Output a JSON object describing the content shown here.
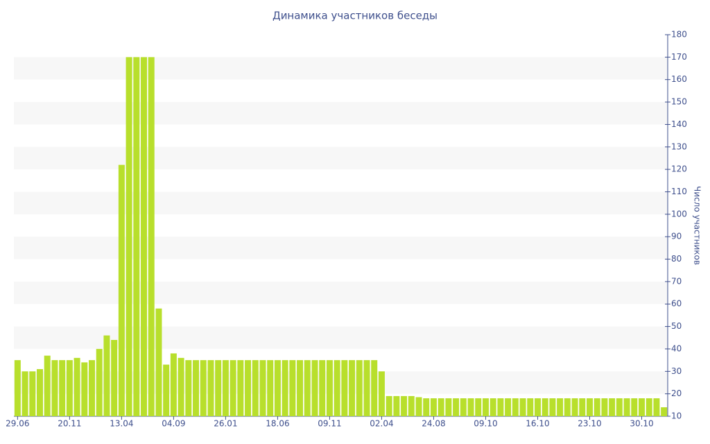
{
  "chart_data": {
    "type": "bar",
    "title": "Динамика участников беседы",
    "y_label": "Число участников",
    "categories": [
      "29.06",
      null,
      null,
      null,
      null,
      null,
      null,
      "20.11",
      null,
      null,
      null,
      null,
      null,
      null,
      "13.04",
      null,
      null,
      null,
      null,
      null,
      null,
      "04.09",
      null,
      null,
      null,
      null,
      null,
      null,
      "26.01",
      null,
      null,
      null,
      null,
      null,
      null,
      "18.06",
      null,
      null,
      null,
      null,
      null,
      null,
      "09.11",
      null,
      null,
      null,
      null,
      null,
      null,
      "02.04",
      null,
      null,
      null,
      null,
      null,
      null,
      "24.08",
      null,
      null,
      null,
      null,
      null,
      null,
      "09.10",
      null,
      null,
      null,
      null,
      null,
      null,
      "16.10",
      null,
      null,
      null,
      null,
      null,
      null,
      "23.10",
      null,
      null,
      null,
      null,
      null,
      null,
      "30.10",
      null,
      null,
      null
    ],
    "values": [
      35,
      30,
      30,
      31,
      37,
      35,
      35,
      35,
      36,
      34,
      35,
      40,
      46,
      44,
      122,
      170,
      170,
      170,
      170,
      58,
      33,
      38,
      36,
      35,
      35,
      35,
      35,
      35,
      35,
      35,
      35,
      35,
      35,
      35,
      35,
      35,
      35,
      35,
      35,
      35,
      35,
      35,
      35,
      35,
      35,
      35,
      35,
      35,
      35,
      30,
      19,
      19,
      19,
      19,
      18.5,
      18,
      18,
      18,
      18,
      18,
      18,
      18,
      18,
      18,
      18,
      18,
      18,
      18,
      18,
      18,
      18,
      18,
      18,
      18,
      18,
      18,
      18,
      18,
      18,
      18,
      18,
      18,
      18,
      18,
      18,
      18,
      18,
      14
    ],
    "color": "#b8df2c",
    "ylim": [
      10,
      180
    ],
    "yticks": [
      10,
      20,
      30,
      40,
      50,
      60,
      70,
      80,
      90,
      100,
      110,
      120,
      130,
      140,
      150,
      160,
      170,
      180
    ],
    "grid": "banded",
    "y_axis_side": "right"
  }
}
